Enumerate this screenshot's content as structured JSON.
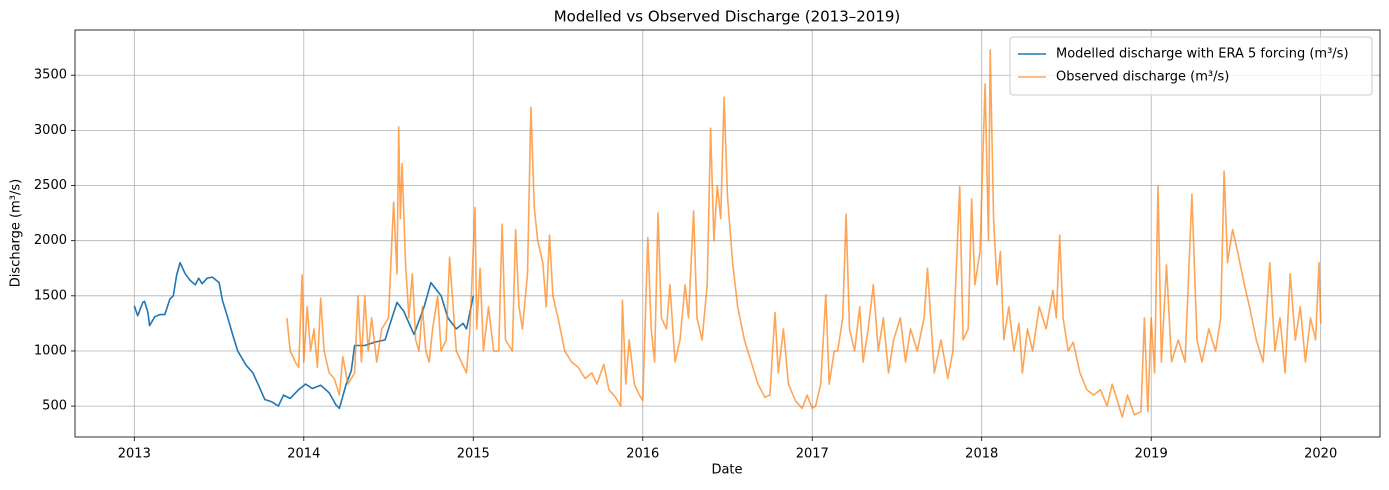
{
  "chart_data": {
    "type": "line",
    "title": "Modelled vs Observed Discharge (2013–2019)",
    "x_label": "Date",
    "y_label": "Discharge (m³/s)",
    "xlim": [
      2012.65,
      2020.35
    ],
    "xticks": [
      2013,
      2014,
      2015,
      2016,
      2017,
      2018,
      2019,
      2020
    ],
    "ylim": [
      220,
      3910
    ],
    "yticks": [
      500,
      1000,
      1500,
      2000,
      2500,
      3000,
      3500
    ],
    "grid": true,
    "legend": "upper right",
    "series": [
      {
        "name": "Modelled discharge with ERA 5 forcing (m³/s)",
        "color": "#1f77b4",
        "opacity": 1,
        "x": [
          2013.0,
          2013.02,
          2013.05,
          2013.06,
          2013.08,
          2013.09,
          2013.12,
          2013.15,
          2013.18,
          2013.21,
          2013.23,
          2013.25,
          2013.27,
          2013.3,
          2013.33,
          2013.36,
          2013.38,
          2013.4,
          2013.43,
          2013.46,
          2013.5,
          2013.52,
          2013.55,
          2013.58,
          2013.61,
          2013.66,
          2013.7,
          2013.73,
          2013.77,
          2013.81,
          2013.85,
          2013.88,
          2013.92,
          2013.97,
          2014.01,
          2014.05,
          2014.1,
          2014.15,
          2014.19,
          2014.21,
          2014.25,
          2014.28,
          2014.3,
          2014.36,
          2014.42,
          2014.48,
          2014.51,
          2014.55,
          2014.59,
          2014.65,
          2014.71,
          2014.75,
          2014.81,
          2014.85,
          2014.9,
          2014.94,
          2014.96,
          2015.0
        ],
        "values": [
          1410,
          1320,
          1440,
          1450,
          1350,
          1230,
          1310,
          1330,
          1330,
          1470,
          1500,
          1690,
          1800,
          1700,
          1640,
          1600,
          1660,
          1610,
          1660,
          1670,
          1620,
          1460,
          1310,
          1150,
          1000,
          870,
          800,
          700,
          560,
          540,
          500,
          600,
          570,
          650,
          700,
          660,
          690,
          620,
          510,
          480,
          700,
          820,
          1050,
          1050,
          1080,
          1100,
          1250,
          1440,
          1360,
          1150,
          1400,
          1620,
          1500,
          1300,
          1200,
          1250,
          1200,
          1500
        ]
      },
      {
        "name": "Observed discharge (m³/s)",
        "color": "#ff7f0e",
        "opacity": 0.7,
        "x": [
          2013.9,
          2013.92,
          2013.95,
          2013.97,
          2013.99,
          2014.0,
          2014.02,
          2014.04,
          2014.06,
          2014.08,
          2014.1,
          2014.12,
          2014.15,
          2014.18,
          2014.21,
          2014.23,
          2014.26,
          2014.3,
          2014.32,
          2014.34,
          2014.36,
          2014.38,
          2014.4,
          2014.43,
          2014.46,
          2014.5,
          2014.53,
          2014.55,
          2014.56,
          2014.57,
          2014.58,
          2014.6,
          2014.62,
          2014.64,
          2014.66,
          2014.68,
          2014.7,
          2014.72,
          2014.74,
          2014.76,
          2014.79,
          2014.81,
          2014.84,
          2014.86,
          2014.9,
          2014.93,
          2014.96,
          2014.98,
          2015.01,
          2015.02,
          2015.04,
          2015.06,
          2015.09,
          2015.12,
          2015.15,
          2015.17,
          2015.19,
          2015.23,
          2015.25,
          2015.27,
          2015.29,
          2015.32,
          2015.34,
          2015.36,
          2015.38,
          2015.41,
          2015.43,
          2015.45,
          2015.47,
          2015.5,
          2015.54,
          2015.58,
          2015.62,
          2015.66,
          2015.7,
          2015.73,
          2015.77,
          2015.8,
          2015.84,
          2015.87,
          2015.88,
          2015.9,
          2015.92,
          2015.95,
          2015.98,
          2016.0,
          2016.03,
          2016.05,
          2016.07,
          2016.09,
          2016.11,
          2016.14,
          2016.16,
          2016.19,
          2016.22,
          2016.25,
          2016.27,
          2016.3,
          2016.32,
          2016.35,
          2016.38,
          2016.4,
          2016.42,
          2016.44,
          2016.46,
          2016.48,
          2016.5,
          2016.53,
          2016.56,
          2016.6,
          2016.64,
          2016.68,
          2016.72,
          2016.75,
          2016.78,
          2016.8,
          2016.83,
          2016.86,
          2016.9,
          2016.94,
          2016.97,
          2017.0,
          2017.02,
          2017.05,
          2017.08,
          2017.1,
          2017.13,
          2017.15,
          2017.18,
          2017.2,
          2017.22,
          2017.25,
          2017.28,
          2017.3,
          2017.33,
          2017.36,
          2017.39,
          2017.42,
          2017.45,
          2017.48,
          2017.52,
          2017.55,
          2017.58,
          2017.62,
          2017.66,
          2017.68,
          2017.72,
          2017.76,
          2017.8,
          2017.83,
          2017.87,
          2017.89,
          2017.92,
          2017.94,
          2017.96,
          2017.99,
          2018.02,
          2018.04,
          2018.05,
          2018.07,
          2018.09,
          2018.11,
          2018.13,
          2018.16,
          2018.19,
          2018.22,
          2018.24,
          2018.27,
          2018.3,
          2018.34,
          2018.38,
          2018.42,
          2018.44,
          2018.46,
          2018.48,
          2018.51,
          2018.54,
          2018.58,
          2018.62,
          2018.66,
          2018.7,
          2018.74,
          2018.77,
          2018.8,
          2018.83,
          2018.86,
          2018.9,
          2018.94,
          2018.96,
          2018.98,
          2019.0,
          2019.02,
          2019.04,
          2019.06,
          2019.09,
          2019.12,
          2019.16,
          2019.2,
          2019.24,
          2019.27,
          2019.3,
          2019.34,
          2019.38,
          2019.41,
          2019.43,
          2019.45,
          2019.48,
          2019.51,
          2019.55,
          2019.58,
          2019.62,
          2019.66,
          2019.7,
          2019.73,
          2019.76,
          2019.79,
          2019.82,
          2019.85,
          2019.88,
          2019.91,
          2019.94,
          2019.97,
          2019.99,
          2020.0
        ],
        "values": [
          1300,
          1000,
          900,
          850,
          1690,
          900,
          1400,
          1000,
          1200,
          850,
          1480,
          1000,
          800,
          750,
          600,
          950,
          700,
          800,
          1500,
          900,
          1500,
          1000,
          1300,
          900,
          1200,
          1300,
          2350,
          1700,
          3030,
          2200,
          2700,
          1800,
          1300,
          1700,
          1100,
          1000,
          1400,
          1000,
          900,
          1200,
          1500,
          1000,
          1100,
          1850,
          1000,
          900,
          800,
          1200,
          2300,
          1200,
          1750,
          1000,
          1400,
          1000,
          1000,
          2150,
          1100,
          1000,
          2100,
          1400,
          1200,
          1700,
          3210,
          2300,
          2000,
          1800,
          1400,
          2050,
          1500,
          1300,
          1000,
          900,
          850,
          750,
          800,
          700,
          880,
          650,
          580,
          500,
          1460,
          700,
          1100,
          700,
          600,
          550,
          2030,
          1200,
          900,
          2250,
          1300,
          1200,
          1600,
          900,
          1100,
          1600,
          1300,
          2270,
          1300,
          1100,
          1600,
          3020,
          2000,
          2500,
          2200,
          3300,
          2400,
          1800,
          1400,
          1100,
          900,
          700,
          580,
          600,
          1350,
          800,
          1200,
          700,
          550,
          480,
          600,
          480,
          500,
          700,
          1510,
          700,
          1000,
          1000,
          1300,
          2240,
          1200,
          1000,
          1400,
          900,
          1200,
          1600,
          1000,
          1300,
          800,
          1100,
          1300,
          900,
          1200,
          1000,
          1300,
          1750,
          800,
          1100,
          750,
          1000,
          2490,
          1100,
          1200,
          2380,
          1600,
          1900,
          3420,
          2000,
          3730,
          2200,
          1600,
          1900,
          1100,
          1400,
          1000,
          1250,
          800,
          1200,
          1000,
          1400,
          1200,
          1550,
          1300,
          2050,
          1300,
          1000,
          1080,
          800,
          650,
          600,
          650,
          500,
          700,
          550,
          400,
          600,
          420,
          450,
          1300,
          450,
          1300,
          800,
          2500,
          900,
          1780,
          900,
          1100,
          900,
          2420,
          1100,
          900,
          1200,
          1000,
          1300,
          2630,
          1800,
          2100,
          1900,
          1600,
          1400,
          1100,
          900,
          1800,
          1000,
          1300,
          800,
          1700,
          1100,
          1400,
          900,
          1300,
          1100,
          1800,
          1250
        ]
      }
    ]
  }
}
